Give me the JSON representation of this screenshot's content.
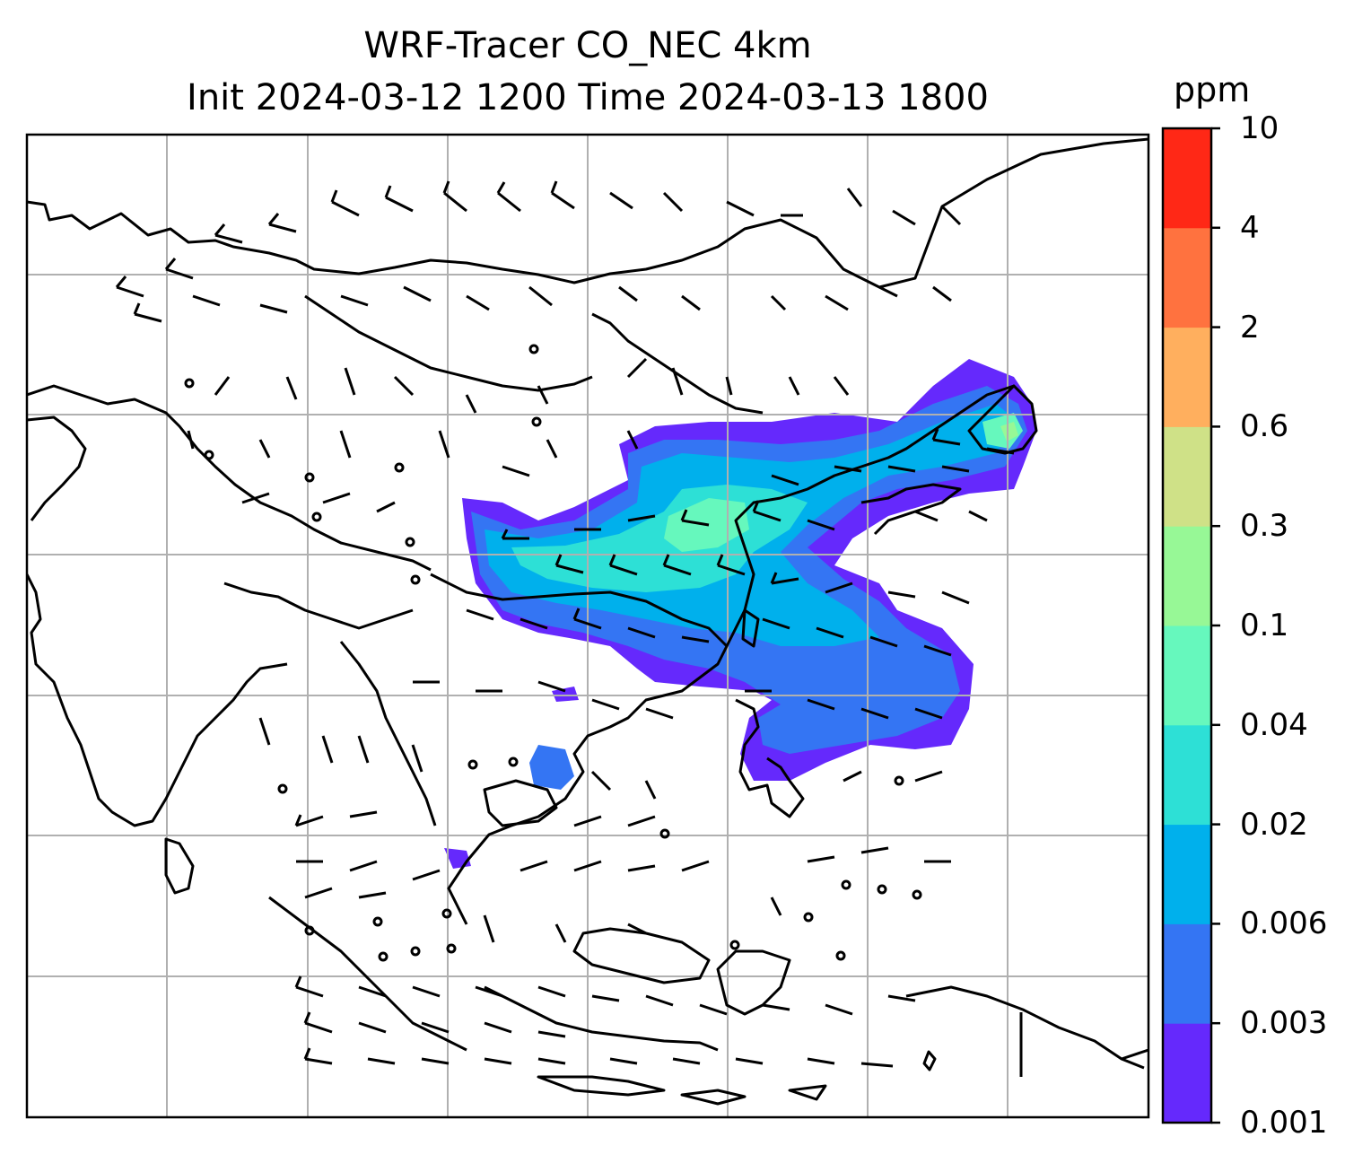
{
  "title": {
    "line1": "WRF-Tracer CO_NEC 4km",
    "line2": "Init 2024-03-12 1200 Time 2024-03-13 1800"
  },
  "colorbar": {
    "unit": "ppm",
    "levels": [
      "0.001",
      "0.003",
      "0.006",
      "0.02",
      "0.04",
      "0.1",
      "0.3",
      "0.6",
      "2",
      "4",
      "10"
    ],
    "colors": [
      "#6529fc",
      "#3475f3",
      "#00b0ec",
      "#2de0d6",
      "#66f8bd",
      "#97f896",
      "#cfe187",
      "#ffaf5e",
      "#ff723f",
      "#ff2816"
    ]
  },
  "map": {
    "background": "#ffffff",
    "gridlines": true,
    "grid_color": "#b0b0b0",
    "coastline_color": "#000000",
    "wind_barb_color": "#000000"
  }
}
